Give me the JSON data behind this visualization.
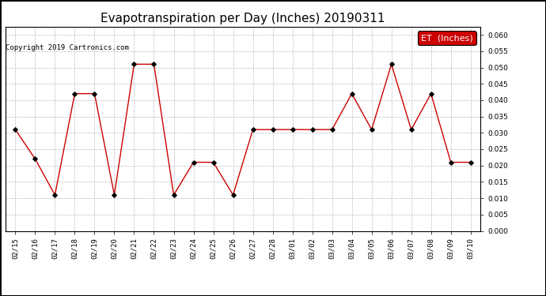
{
  "title": "Evapotranspiration per Day (Inches) 20190311",
  "copyright_text": "Copyright 2019 Cartronics.com",
  "legend_label": "ET  (Inches)",
  "legend_bg": "#cc0000",
  "legend_text_color": "#ffffff",
  "line_color": "#cc0000",
  "marker_color": "#000000",
  "background_color": "#ffffff",
  "grid_color": "#bbbbbb",
  "ylim": [
    0.0,
    0.0625
  ],
  "yticks": [
    0.0,
    0.005,
    0.01,
    0.015,
    0.02,
    0.025,
    0.03,
    0.035,
    0.04,
    0.045,
    0.05,
    0.055,
    0.06
  ],
  "dates": [
    "02/15",
    "02/16",
    "02/17",
    "02/18",
    "02/19",
    "02/20",
    "02/21",
    "02/22",
    "02/23",
    "02/24",
    "02/25",
    "02/26",
    "02/27",
    "02/28",
    "03/01",
    "03/02",
    "03/03",
    "03/04",
    "03/05",
    "03/06",
    "03/07",
    "03/08",
    "03/09",
    "03/10"
  ],
  "values": [
    0.031,
    0.022,
    0.011,
    0.042,
    0.042,
    0.011,
    0.051,
    0.051,
    0.011,
    0.021,
    0.021,
    0.011,
    0.031,
    0.031,
    0.031,
    0.031,
    0.031,
    0.042,
    0.031,
    0.051,
    0.031,
    0.042,
    0.021,
    0.021
  ],
  "title_fontsize": 11,
  "copyright_fontsize": 6.5,
  "tick_fontsize": 6.5,
  "legend_fontsize": 8
}
